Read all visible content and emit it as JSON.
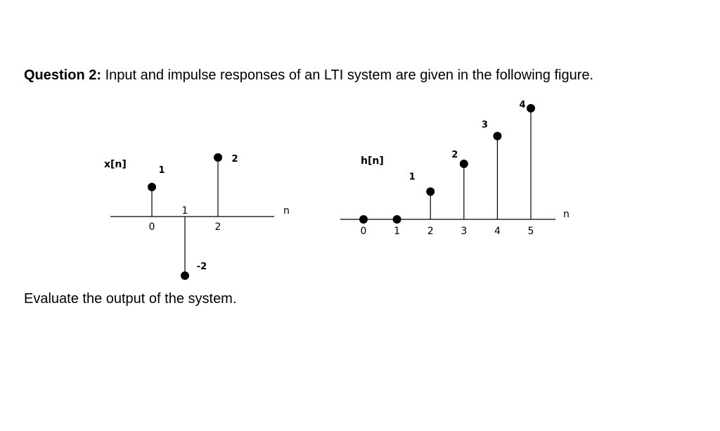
{
  "question": {
    "label": "Question 2:",
    "text": " Input and impulse responses of an LTI system are given in the following figure."
  },
  "instruction": "Evaluate the output of the system.",
  "chart_data": [
    {
      "type": "stem",
      "ylabel": "x[n]",
      "xlabel": "n",
      "x": [
        0,
        1,
        2
      ],
      "values": [
        1,
        -2,
        2
      ],
      "tick_labels": [
        "0",
        "1",
        "2"
      ],
      "value_labels": [
        "1",
        "-2",
        "2"
      ]
    },
    {
      "type": "stem",
      "ylabel": "h[n]",
      "xlabel": "n",
      "x": [
        0,
        1,
        2,
        3,
        4,
        5
      ],
      "values": [
        0,
        0,
        1,
        2,
        3,
        4
      ],
      "tick_labels": [
        "0",
        "1",
        "2",
        "3",
        "4",
        "5"
      ],
      "value_labels": [
        "",
        "",
        "1",
        "2",
        "3",
        "4"
      ]
    }
  ]
}
